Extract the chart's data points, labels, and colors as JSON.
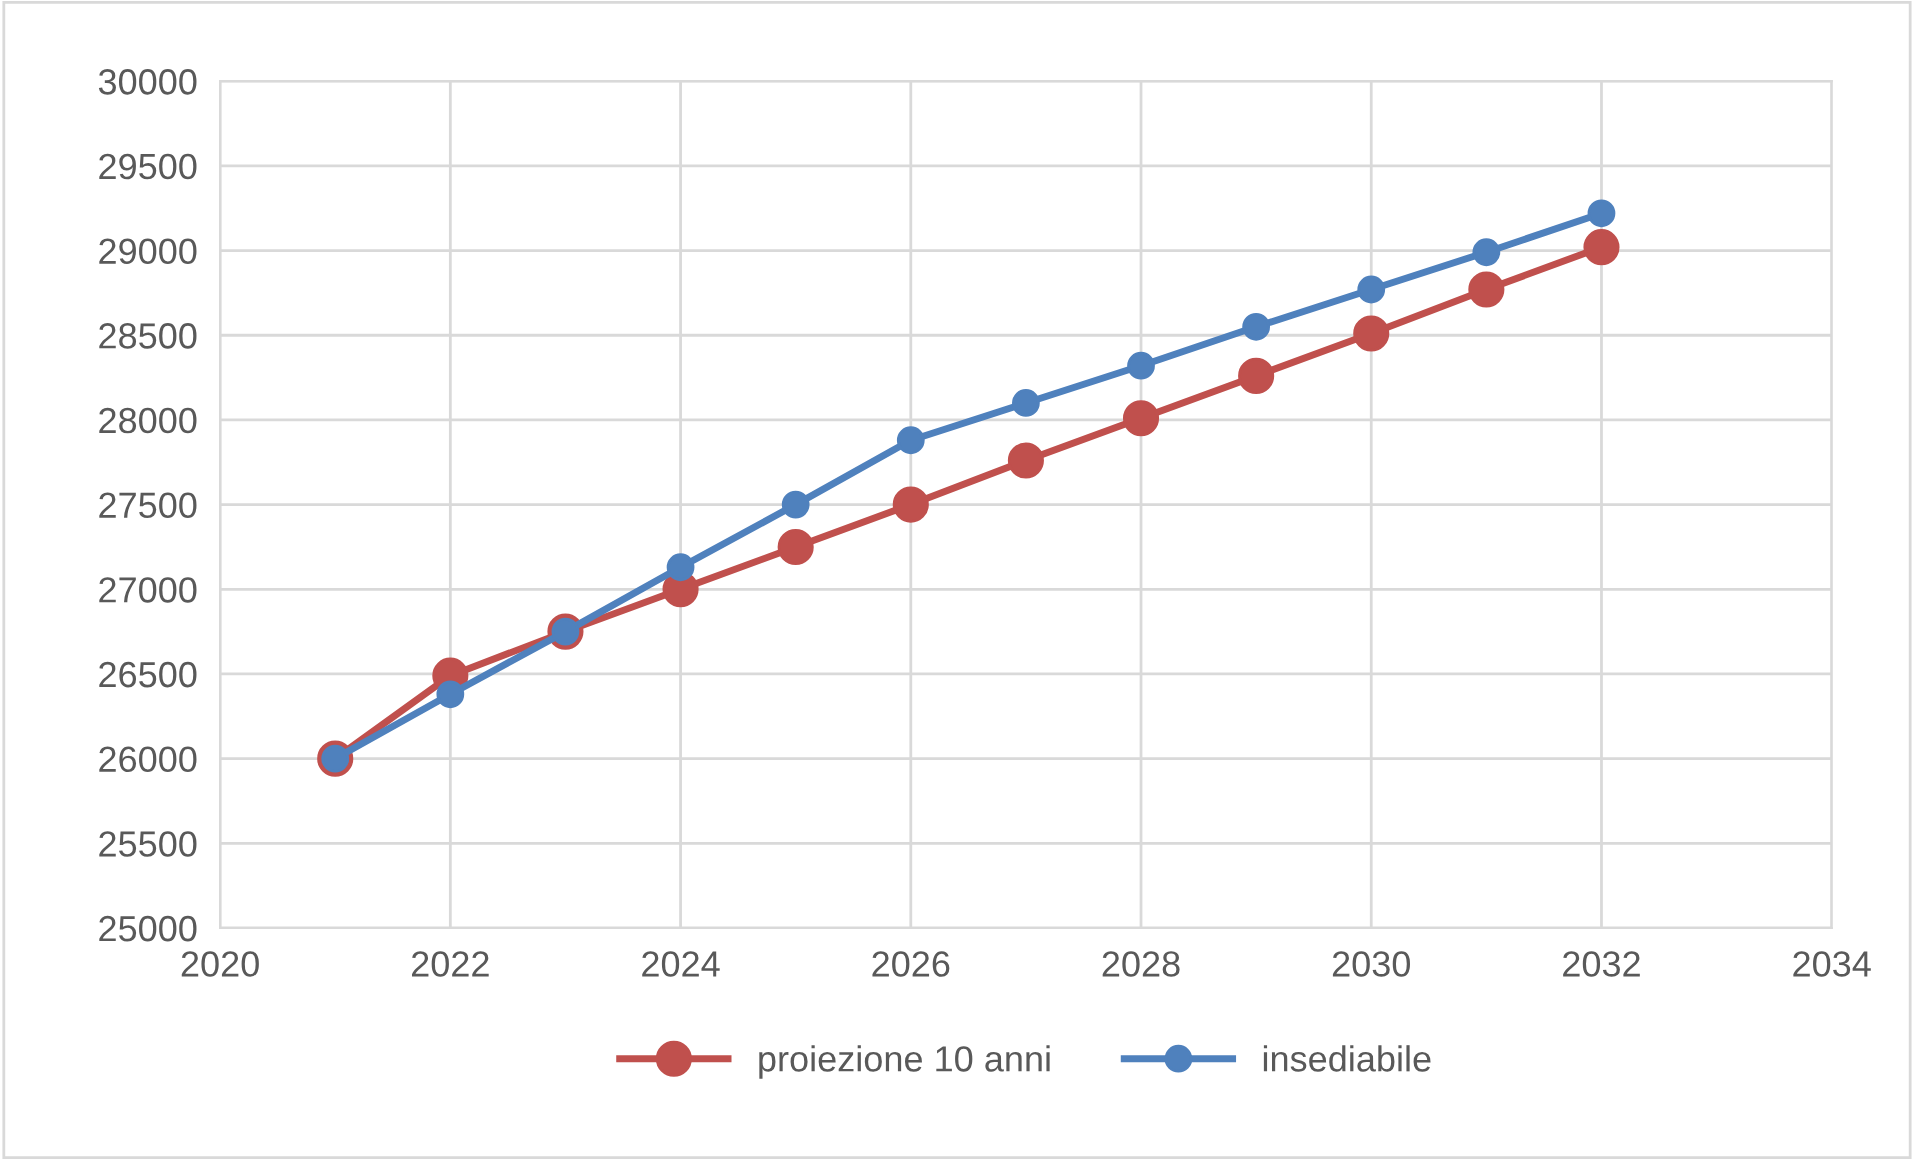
{
  "chart_data": {
    "type": "line",
    "x": [
      2021,
      2022,
      2023,
      2024,
      2025,
      2026,
      2027,
      2028,
      2029,
      2030,
      2031,
      2032
    ],
    "series": [
      {
        "name": "proiezione 10 anni",
        "color": "#c0504d",
        "values": [
          26000,
          26490,
          26750,
          27000,
          27250,
          27500,
          27760,
          28010,
          28260,
          28510,
          28770,
          29020
        ]
      },
      {
        "name": "insediabile",
        "color": "#4f81bd",
        "values": [
          26000,
          26380,
          26750,
          27130,
          27500,
          27880,
          28100,
          28320,
          28550,
          28770,
          28990,
          29220
        ]
      }
    ],
    "xlim": [
      2020,
      2034
    ],
    "xticks": [
      2020,
      2022,
      2024,
      2026,
      2028,
      2030,
      2032,
      2034
    ],
    "ylim": [
      25000,
      30000
    ],
    "yticks": [
      25000,
      25500,
      26000,
      26500,
      27000,
      27500,
      28000,
      28500,
      29000,
      29500,
      30000
    ],
    "grid": true,
    "legend": "bottom",
    "marker": "circle",
    "line_style": "solid"
  }
}
